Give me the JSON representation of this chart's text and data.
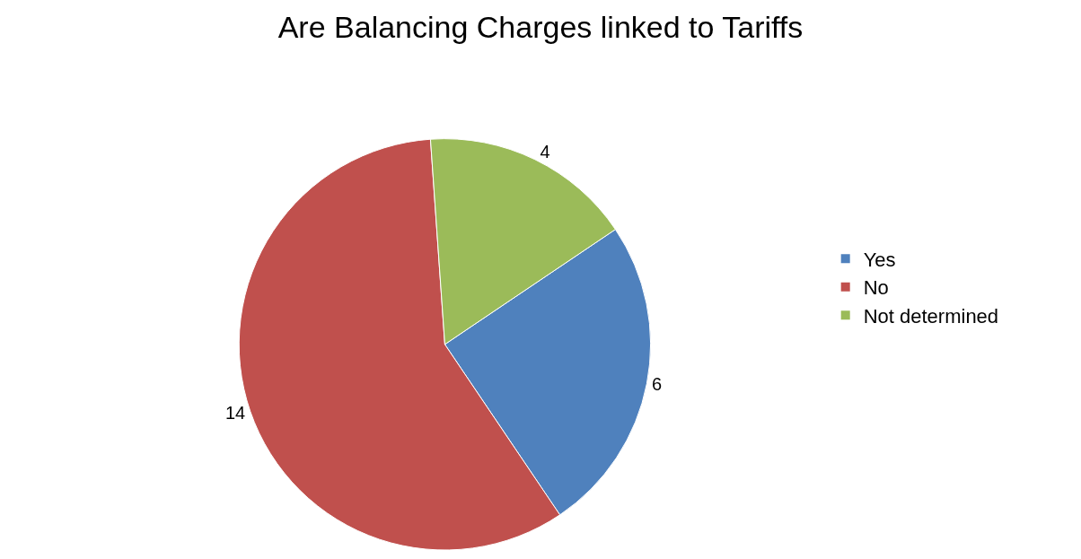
{
  "chart_data": {
    "type": "pie",
    "title": "Are Balancing Charges linked to Tariffs",
    "categories": [
      "Yes",
      "No",
      "Not determined"
    ],
    "values": [
      6,
      14,
      4
    ],
    "colors": [
      "#4f81bd",
      "#c0504d",
      "#9bbb59"
    ],
    "data_labels": true,
    "legend": "right"
  }
}
